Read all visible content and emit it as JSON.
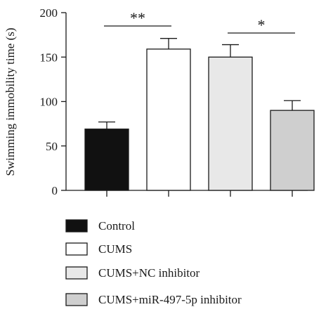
{
  "chart_data": {
    "type": "bar",
    "title": "",
    "xlabel": "",
    "ylabel": "Swimming immobility time (s)",
    "ylim": [
      0,
      200
    ],
    "yticks": [
      0,
      50,
      100,
      150,
      200
    ],
    "grid": false,
    "legend_position": "bottom",
    "categories": [
      "Control",
      "CUMS",
      "CUMS+NC inhibitor",
      "CUMS+miR-497-5p inhibitor"
    ],
    "values": [
      69,
      159,
      150,
      90
    ],
    "errors": [
      8,
      12,
      14,
      11
    ],
    "colors": [
      "#111111",
      "#ffffff",
      "#e8e8e8",
      "#cfcfcf"
    ],
    "significance": [
      {
        "from": 0,
        "to": 1,
        "label": "**"
      },
      {
        "from": 2,
        "to": 3,
        "label": "*"
      }
    ]
  }
}
